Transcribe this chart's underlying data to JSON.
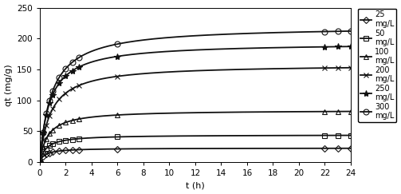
{
  "title": "",
  "xlabel": "t (h)",
  "ylabel": "qt (mg/g)",
  "xlim": [
    0,
    24
  ],
  "ylim": [
    0,
    250
  ],
  "yticks": [
    0,
    50,
    100,
    150,
    200,
    250
  ],
  "xticks": [
    0,
    2,
    4,
    6,
    8,
    10,
    12,
    14,
    16,
    18,
    20,
    22,
    24
  ],
  "series": [
    {
      "label_num": "25",
      "qe": 22.5,
      "k": 2.5,
      "marker": "D",
      "markersize": 4,
      "color": "#111111"
    },
    {
      "label_num": "50",
      "qe": 44,
      "k": 2.0,
      "marker": "s",
      "markersize": 4,
      "color": "#111111"
    },
    {
      "label_num": "100",
      "qe": 84,
      "k": 1.6,
      "marker": "^",
      "markersize": 5,
      "color": "#111111"
    },
    {
      "label_num": "200",
      "qe": 158,
      "k": 1.2,
      "marker": "x",
      "markersize": 5,
      "color": "#111111"
    },
    {
      "label_num": "250",
      "qe": 193,
      "k": 1.3,
      "marker": "*",
      "markersize": 6,
      "color": "#111111"
    },
    {
      "label_num": "300",
      "qe": 220,
      "k": 1.1,
      "marker": "o",
      "markersize": 5,
      "color": "#111111"
    }
  ],
  "data_times": [
    0,
    0.25,
    0.5,
    0.75,
    1.0,
    1.5,
    2.0,
    2.5,
    3.0,
    6.0,
    22.0,
    23.0,
    24.0
  ],
  "background_color": "#ffffff",
  "linewidth": 1.3,
  "open_markers": [
    "o",
    "s",
    "D",
    "^"
  ],
  "figwidth": 5.03,
  "figheight": 2.43,
  "dpi": 100
}
